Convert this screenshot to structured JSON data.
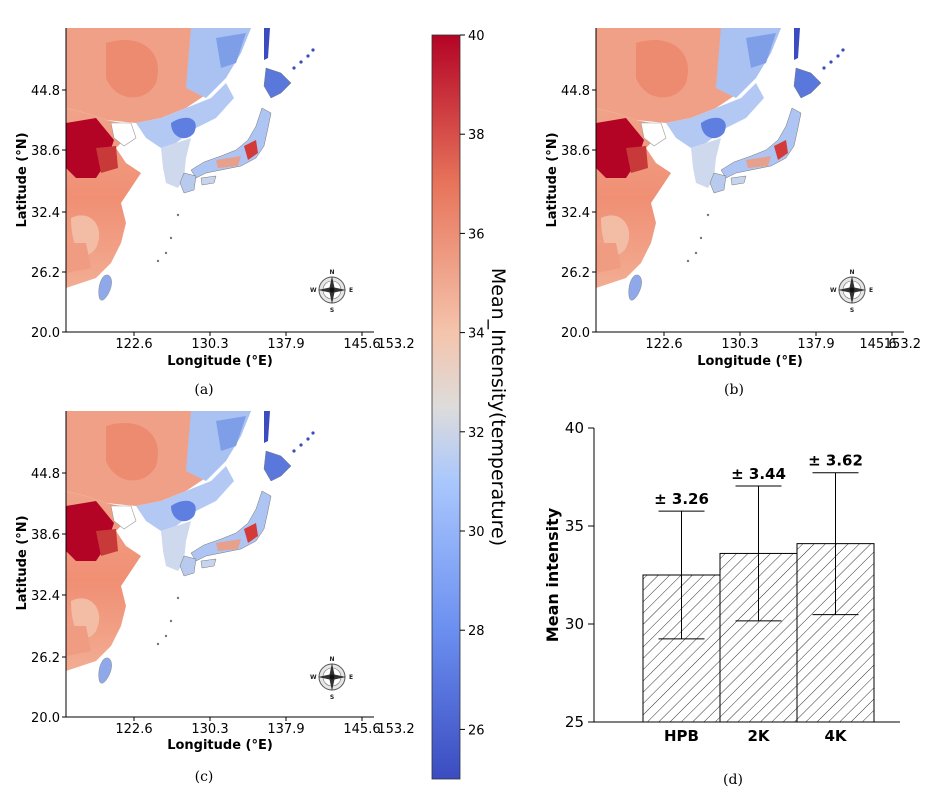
{
  "colorbar": {
    "label": "Mean_Intensity(temperature)",
    "ticks": [
      26,
      28,
      30,
      32,
      34,
      36,
      38,
      40
    ],
    "min": 25,
    "max": 40,
    "colors": {
      "low": "#3b4cc0",
      "mid": "#dddddd",
      "high": "#b40426"
    }
  },
  "maps": [
    {
      "caption": "(a)"
    },
    {
      "caption": "(b)"
    },
    {
      "caption": "(c)"
    }
  ],
  "map_axes": {
    "xlabel": "Longitude (°E)",
    "ylabel": "Latitude (°N)",
    "xticks": [
      "122.6",
      "130.3",
      "137.9",
      "145.6",
      "153.2"
    ],
    "yticks": [
      "20.0",
      "26.2",
      "32.4",
      "38.6",
      "44.8"
    ],
    "compass": {
      "n": "N",
      "s": "S",
      "e": "E",
      "w": "W"
    }
  },
  "chart_data": {
    "type": "bar",
    "caption": "(d)",
    "categories": [
      "HPB",
      "2K",
      "4K"
    ],
    "values": [
      32.5,
      33.6,
      34.1
    ],
    "errors": [
      3.26,
      3.44,
      3.62
    ],
    "error_labels": [
      "± 3.26",
      "± 3.44",
      "± 3.62"
    ],
    "ylabel": "Mean intensity",
    "ylim": [
      25,
      40
    ],
    "yticks": [
      25,
      30,
      35,
      40
    ],
    "hatch": "diagonal"
  }
}
